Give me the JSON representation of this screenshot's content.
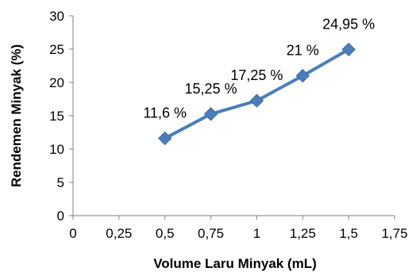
{
  "chart_data": {
    "type": "line",
    "xlabel": "Volume Laru Minyak (mL)",
    "ylabel": "Rendemen Minyak (%)",
    "xlim": [
      0,
      1.75
    ],
    "ylim": [
      0,
      30
    ],
    "x_ticks": [
      {
        "value": 0,
        "label": "0"
      },
      {
        "value": 0.25,
        "label": "0,25"
      },
      {
        "value": 0.5,
        "label": "0,5"
      },
      {
        "value": 0.75,
        "label": "0,75"
      },
      {
        "value": 1,
        "label": "1"
      },
      {
        "value": 1.25,
        "label": "1,25"
      },
      {
        "value": 1.5,
        "label": "1,5"
      },
      {
        "value": 1.75,
        "label": "1,75"
      }
    ],
    "y_ticks": [
      {
        "value": 0,
        "label": "0"
      },
      {
        "value": 5,
        "label": "5"
      },
      {
        "value": 10,
        "label": "10"
      },
      {
        "value": 15,
        "label": "15"
      },
      {
        "value": 20,
        "label": "20"
      },
      {
        "value": 25,
        "label": "25"
      },
      {
        "value": 30,
        "label": "30"
      }
    ],
    "grid": false,
    "legend": "none",
    "series": [
      {
        "color": "#4a7ebb",
        "marker": "diamond",
        "points": [
          {
            "x": 0.5,
            "y": 11.6,
            "label": "11,6 %"
          },
          {
            "x": 0.75,
            "y": 15.25,
            "label": "15,25 %"
          },
          {
            "x": 1,
            "y": 17.25,
            "label": "17,25 %"
          },
          {
            "x": 1.25,
            "y": 21,
            "label": "21 %"
          },
          {
            "x": 1.5,
            "y": 24.95,
            "label": "24,95 %"
          }
        ]
      }
    ]
  }
}
